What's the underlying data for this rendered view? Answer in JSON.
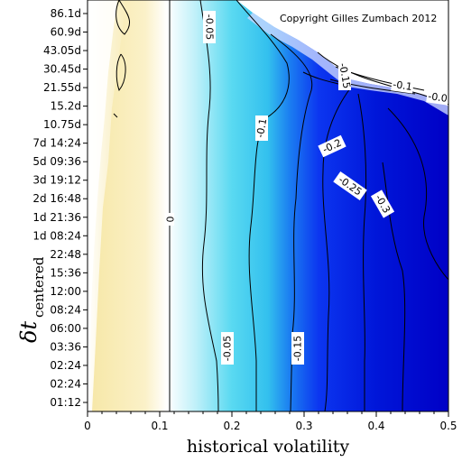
{
  "chart_data": {
    "type": "heatmap",
    "title": "",
    "annotation": "Copyright Gilles Zumbach 2012",
    "xlabel": "historical volatility",
    "ylabel_symbol": "δt",
    "ylabel_subscript": "centered",
    "xlim": [
      0,
      0.5
    ],
    "x_ticks": [
      "0",
      "0.1",
      "0.2",
      "0.3",
      "0.4",
      "0.5"
    ],
    "y_ticks": [
      "86.1d",
      "60.9d",
      "43.05d",
      "30.45d",
      "21.55d",
      "15.2d",
      "10.75d",
      "7d 14:24",
      "5d 09:36",
      "3d 19:12",
      "2d 16:48",
      "1d 21:36",
      "1d 08:24",
      "22:48",
      "15:36",
      "12:00",
      "08:24",
      "06:00",
      "03:36",
      "02:24",
      "02:24",
      "01:12"
    ],
    "contour_levels": [
      0,
      -0.05,
      -0.1,
      -0.15,
      -0.2,
      -0.25,
      -0.3
    ],
    "contour_labels": [
      "0",
      "-0.05",
      "-0.1",
      "-0.15",
      "-0.2",
      "-0.25",
      "-0.3",
      "-0.05",
      "-0.15",
      "-0.1",
      "-0.0"
    ],
    "colormap": [
      "#f6e7a4",
      "#ffffff",
      "#47d6f0",
      "#0b2ef2",
      "#0000c8"
    ]
  }
}
